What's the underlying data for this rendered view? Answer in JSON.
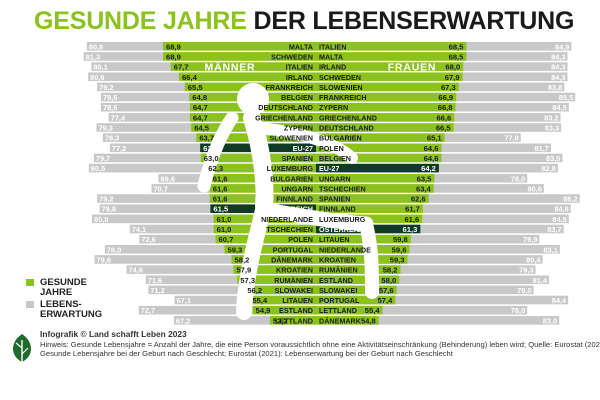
{
  "title": {
    "part1": "GESUNDE JAHRE",
    "part2": "DER LEBENSERWARTUNG"
  },
  "colors": {
    "green": "#8cc21e",
    "dark_green": "#0e3b22",
    "gray": "#c8c8c8",
    "dark_gray": "#8c8c8c"
  },
  "chart_data": {
    "type": "bar",
    "title": "GESUNDE JAHRE DER LEBENSERWARTUNG",
    "male_label": "MÄNNER",
    "female_label": "FRAUEN",
    "men": {
      "countries": [
        "MALTA",
        "SCHWEDEN",
        "ITALIEN",
        "IRLAND",
        "FRANKREICH",
        "BELGIEN",
        "DEUTSCHLAND",
        "GRIECHENLAND",
        "ZYPERN",
        "SLOWENIEN",
        "EU-27",
        "SPANIEN",
        "LUXEMBURG",
        "BULGARIEN",
        "UNGARN",
        "FINNLAND",
        "ÖSTERREICH",
        "NIEDERLANDE",
        "TSCHECHIEN",
        "POLEN",
        "PORTUGAL",
        "DÄNEMARK",
        "KROATIEN",
        "RUMÄNIEN",
        "SLOWAKEI",
        "LITAUEN",
        "ESTLAND",
        "LETTLAND"
      ],
      "healthy_years": [
        "68,9",
        "68,9",
        "67,7",
        "66,4",
        "65,5",
        "64,8",
        "64,7",
        "64,7",
        "64,5",
        "63,7",
        "63,1",
        "63,0",
        "62,3",
        "61,6",
        "61,6",
        "61,6",
        "61,5",
        "61,0",
        "61,0",
        "60,7",
        "59,3",
        "58,2",
        "57,9",
        "57,3",
        "56,2",
        "55,4",
        "54,9",
        "52,2"
      ],
      "life_expectancy": [
        "80,8",
        "81,3",
        "80,1",
        "80,6",
        "79,2",
        "78,6",
        "78,6",
        "77,4",
        "79,3",
        "78,3",
        "77,2",
        "79,7",
        "80,5",
        "69,6",
        "70,7",
        "79,2",
        "78,8",
        "80,0",
        "74,1",
        "72,6",
        "78,0",
        "79,6",
        "74,6",
        "71,6",
        "71,2",
        "67,1",
        "72,7",
        "67,2"
      ]
    },
    "women": {
      "countries": [
        "ITALIEN",
        "MALTA",
        "IRLAND",
        "SCHWEDEN",
        "SLOWENIEN",
        "FRANKREICH",
        "ZYPERN",
        "GRIECHENLAND",
        "DEUTSCHLAND",
        "BULGARIEN",
        "POLEN",
        "BELGIEN",
        "EU-27",
        "UNGARN",
        "TSCHECHIEN",
        "SPANIEN",
        "FINNLAND",
        "LUXEMBURG",
        "ÖSTERREICH",
        "LITAUEN",
        "NIEDERLANDE",
        "KROATIEN",
        "RUMÄNIEN",
        "ESTLAND",
        "SLOWAKEI",
        "PORTUGAL",
        "LETTLAND",
        "DÄNEMARK"
      ],
      "healthy_years": [
        "68,5",
        "68,5",
        "68,0",
        "67,9",
        "67,3",
        "66,9",
        "66,8",
        "66,6",
        "66,5",
        "65,1",
        "64,6",
        "64,6",
        "64,2",
        "63,5",
        "63,4",
        "62,6",
        "61,7",
        "61,6",
        "61,3",
        "59,8",
        "59,6",
        "59,3",
        "58,2",
        "58,0",
        "57,6",
        "57,4",
        "55,4",
        "54,8"
      ],
      "life_expectancy": [
        "84,9",
        "84,3",
        "84,3",
        "84,3",
        "83,8",
        "85,5",
        "84,5",
        "83,2",
        "83,3",
        "77,0",
        "81,7",
        "83,5",
        "82,8",
        "78,0",
        "80,6",
        "86,2",
        "84,8",
        "84,5",
        "83,7",
        "79,9",
        "83,1",
        "80,4",
        "79,3",
        "81,4",
        "79,0",
        "84,4",
        "78,0",
        "83,0"
      ]
    }
  },
  "legend": {
    "healthy": [
      "GESUNDE",
      "JAHRE"
    ],
    "life": [
      "LEBENS-",
      "ERWARTUNG"
    ]
  },
  "footer": {
    "credit": "Infografik © Land schafft Leben 2023",
    "note1": "Hinweis: Gesunde Lebensjahre = Anzahl der Jahre, die eine Person voraussichtlich ohne eine Aktivitätseinschränkung (Behinderung) leben wird; Quelle: Eurostat (2021):",
    "note2": "Gesunde Lebensjahre bei der Geburt nach Geschlecht; Eurostat (2021): Lebenserwartung bei der Geburt nach Geschlecht"
  }
}
